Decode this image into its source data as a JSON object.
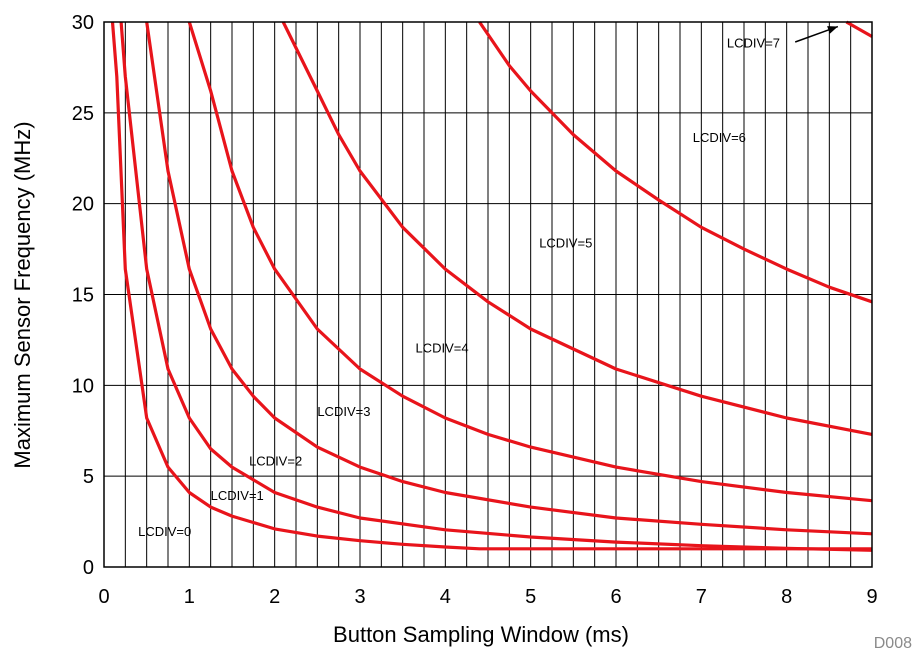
{
  "chart_data": {
    "type": "line",
    "title": "",
    "xlabel": "Button Sampling Window (ms)",
    "ylabel": "Maximum Sensor Frequency (MHz)",
    "xlim": [
      0,
      9
    ],
    "ylim": [
      0,
      30
    ],
    "x_ticks": [
      0,
      1,
      2,
      3,
      4,
      5,
      6,
      7,
      8,
      9
    ],
    "y_ticks": [
      0,
      5,
      10,
      15,
      20,
      25,
      30
    ],
    "grid": "vertical",
    "line_color": "#e8141b",
    "figure_id": "D008",
    "series": [
      {
        "name": "LCDIV=0",
        "x": [
          0.1,
          0.15,
          0.25,
          0.5,
          0.75,
          1.0,
          1.25,
          1.5,
          2.0,
          2.5,
          3.0,
          3.5,
          4.0,
          4.4,
          5.0,
          6.0,
          7.0,
          8.0,
          9.0
        ],
        "y": [
          30,
          27,
          16.4,
          8.2,
          5.5,
          4.1,
          3.3,
          2.8,
          2.1,
          1.7,
          1.45,
          1.25,
          1.1,
          1.0,
          1.0,
          1.0,
          1.0,
          1.0,
          1.0
        ]
      },
      {
        "name": "LCDIV=1",
        "x": [
          0.2,
          0.25,
          0.5,
          0.75,
          1.0,
          1.25,
          1.5,
          2.0,
          2.5,
          3.0,
          4.0,
          5.0,
          6.0,
          7.0,
          8.0,
          9.0
        ],
        "y": [
          30,
          27,
          16.4,
          10.9,
          8.2,
          6.5,
          5.5,
          4.1,
          3.3,
          2.7,
          2.05,
          1.65,
          1.37,
          1.17,
          1.03,
          0.92
        ]
      },
      {
        "name": "LCDIV=2",
        "x": [
          0.5,
          0.75,
          1.0,
          1.25,
          1.5,
          1.75,
          2.0,
          2.5,
          3.0,
          3.5,
          4.0,
          5.0,
          6.0,
          7.0,
          8.0,
          9.0
        ],
        "y": [
          30,
          21.8,
          16.4,
          13.1,
          10.9,
          9.4,
          8.2,
          6.6,
          5.5,
          4.7,
          4.1,
          3.3,
          2.7,
          2.35,
          2.05,
          1.83
        ]
      },
      {
        "name": "LCDIV=3",
        "x": [
          1.0,
          1.25,
          1.5,
          1.75,
          2.0,
          2.5,
          3.0,
          3.5,
          4.0,
          4.5,
          5.0,
          6.0,
          7.0,
          8.0,
          9.0
        ],
        "y": [
          30,
          26.2,
          21.8,
          18.7,
          16.4,
          13.1,
          10.9,
          9.4,
          8.2,
          7.3,
          6.6,
          5.5,
          4.7,
          4.1,
          3.65
        ]
      },
      {
        "name": "LCDIV=4",
        "x": [
          2.1,
          2.5,
          2.75,
          3.0,
          3.5,
          4.0,
          4.5,
          5.0,
          6.0,
          7.0,
          8.0,
          9.0
        ],
        "y": [
          30,
          26.2,
          23.8,
          21.8,
          18.7,
          16.4,
          14.6,
          13.1,
          10.9,
          9.4,
          8.2,
          7.3
        ]
      },
      {
        "name": "LCDIV=5",
        "x": [
          4.4,
          4.75,
          5.0,
          5.5,
          6.0,
          6.5,
          7.0,
          7.5,
          8.0,
          8.5,
          9.0
        ],
        "y": [
          30,
          27.6,
          26.2,
          23.8,
          21.8,
          20.2,
          18.7,
          17.5,
          16.4,
          15.4,
          14.6
        ]
      },
      {
        "name": "LCDIV=6",
        "x": [
          8.7,
          9.0
        ],
        "y": [
          30,
          29.2
        ]
      }
    ],
    "annotations": [
      {
        "text": "LCDIV=0",
        "x": 0.4,
        "y": 1.7
      },
      {
        "text": "LCDIV=1",
        "x": 1.25,
        "y": 3.7
      },
      {
        "text": "LCDIV=2",
        "x": 1.7,
        "y": 5.6
      },
      {
        "text": "LCDIV=3",
        "x": 2.5,
        "y": 8.3
      },
      {
        "text": "LCDIV=4",
        "x": 3.65,
        "y": 11.8
      },
      {
        "text": "LCDIV=5",
        "x": 5.1,
        "y": 17.6
      },
      {
        "text": "LCDIV=6",
        "x": 6.9,
        "y": 23.4
      },
      {
        "text": "LCDIV=7",
        "x": 7.3,
        "y": 28.6
      }
    ]
  }
}
